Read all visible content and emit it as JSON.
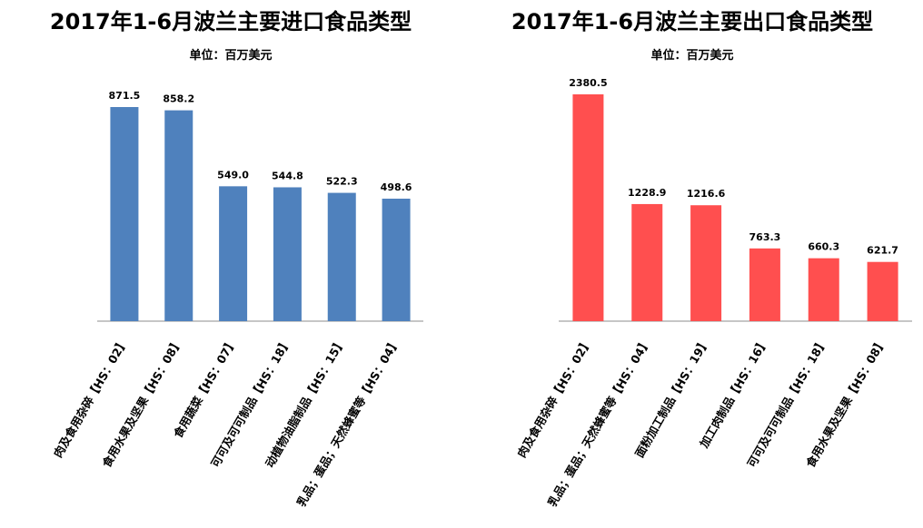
{
  "chart_data": [
    {
      "type": "bar",
      "title": "2017年1-6月波兰主要进口食品类型",
      "subtitle": "单位：百万美元",
      "categories": [
        "肉及食用杂碎【HS：02】",
        "食用水果及坚果【HS：08】",
        "食用蔬菜【HS：07】",
        "可可及可可制品【HS：18】",
        "动植物油脂制品【HS：15】",
        "乳品；蛋品；天然蜂蜜等【HS：04】"
      ],
      "values": [
        871.5,
        858.2,
        549.0,
        544.8,
        522.3,
        498.6
      ],
      "value_labels": [
        "871.5",
        "858.2",
        "549.0",
        "544.8",
        "522.3",
        "498.6"
      ],
      "ylim": [
        0,
        871.5
      ],
      "bar_color": "#4f81bd",
      "grid": false,
      "legend": "none"
    },
    {
      "type": "bar",
      "title": "2017年1-6月波兰主要出口食品类型",
      "subtitle": "单位：百万美元",
      "categories": [
        "肉及食用杂碎【HS：02】",
        "乳品；蛋品；天然蜂蜜等【HS：04】",
        "面粉加工制品【HS：19】",
        "加工肉制品【HS：16】",
        "可可及可可制品【HS：18】",
        "食用水果及坚果【HS：08】"
      ],
      "values": [
        2380.5,
        1228.9,
        1216.6,
        763.3,
        660.3,
        621.7
      ],
      "value_labels": [
        "2380.5",
        "1228.9",
        "1216.6",
        "763.3",
        "660.3",
        "621.7"
      ],
      "ylim": [
        0,
        2380.5
      ],
      "bar_color": "#ff4f4f",
      "grid": false,
      "legend": "none"
    }
  ]
}
